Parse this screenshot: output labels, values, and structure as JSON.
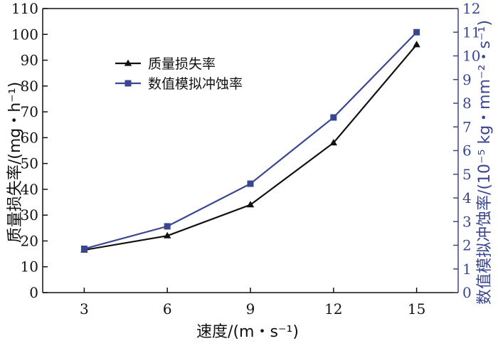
{
  "chart_data": {
    "type": "line",
    "x": [
      3,
      6,
      9,
      12,
      15
    ],
    "x_ticks": [
      "3",
      "6",
      "9",
      "12",
      "15"
    ],
    "xlim": [
      1.5,
      16.5
    ],
    "xlabel": "速度/(m・s⁻¹)",
    "ylabel_left": "质量损失率/(mg・h⁻¹)",
    "ylabel_right": "数值模拟冲蚀率/(10⁻⁵ kg・mm⁻²・s⁻¹)",
    "ylim_left": [
      0,
      110
    ],
    "ylim_right": [
      0,
      12
    ],
    "y_ticks_left": [
      0,
      10,
      20,
      30,
      40,
      50,
      60,
      70,
      80,
      90,
      100,
      110
    ],
    "y_ticks_right": [
      0,
      1,
      2,
      3,
      4,
      5,
      6,
      7,
      8,
      9,
      10,
      11,
      12
    ],
    "grid": false,
    "legend_position": "top-left",
    "series": [
      {
        "name": "质量损失率",
        "axis": "left",
        "marker": "triangle",
        "color": "#111111",
        "values": [
          16.5,
          22,
          34,
          58,
          96
        ]
      },
      {
        "name": "数值模拟冲蚀率",
        "axis": "right",
        "marker": "square",
        "color": "#3a4690",
        "values": [
          1.85,
          2.8,
          4.6,
          7.4,
          11.0
        ]
      }
    ],
    "colors": {
      "left_axis": "#111111",
      "right_axis": "#3a4690"
    }
  }
}
